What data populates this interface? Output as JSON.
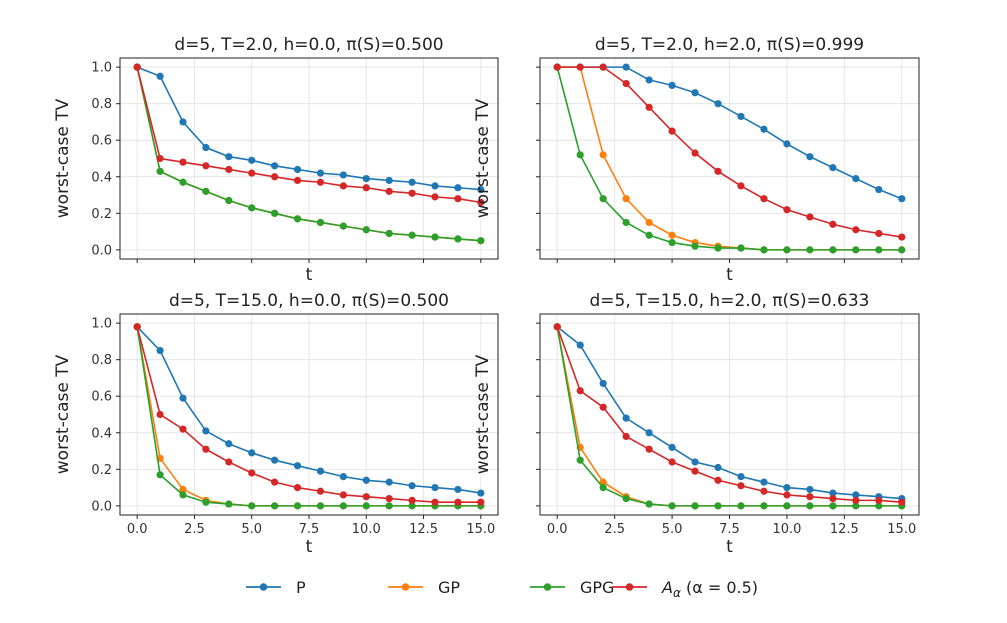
{
  "legend": {
    "items": [
      {
        "label": "P",
        "color": "#1f77b4"
      },
      {
        "label": "GP",
        "color": "#ff7f0e"
      },
      {
        "label": "GPG",
        "color": "#2ca02c"
      },
      {
        "label": "A",
        "sub": "α",
        "suffix": " (α = 0.5)",
        "color": "#d62728"
      }
    ]
  },
  "chart_data": [
    {
      "type": "line",
      "title": "d=5, T=2.0, h=0.0, π(S)=0.500",
      "xlabel": "t",
      "ylabel": "worst-case TV",
      "xlim": [
        0,
        15
      ],
      "ylim": [
        0,
        1.0
      ],
      "x_ticklabels_shown": false,
      "y_ticklabels_shown": true,
      "x": [
        0,
        1,
        2,
        3,
        4,
        5,
        6,
        7,
        8,
        9,
        10,
        11,
        12,
        13,
        14,
        15
      ],
      "series": [
        {
          "name": "P",
          "values": [
            1.0,
            0.95,
            0.7,
            0.56,
            0.51,
            0.49,
            0.46,
            0.44,
            0.42,
            0.41,
            0.39,
            0.38,
            0.37,
            0.35,
            0.34,
            0.33
          ]
        },
        {
          "name": "GP",
          "values": [
            1.0,
            0.43,
            0.37,
            0.32,
            0.27,
            0.23,
            0.2,
            0.17,
            0.15,
            0.13,
            0.11,
            0.09,
            0.08,
            0.07,
            0.06,
            0.05
          ]
        },
        {
          "name": "GPG",
          "values": [
            1.0,
            0.43,
            0.37,
            0.32,
            0.27,
            0.23,
            0.2,
            0.17,
            0.15,
            0.13,
            0.11,
            0.09,
            0.08,
            0.07,
            0.06,
            0.05
          ]
        },
        {
          "name": "A_α (α = 0.5)",
          "values": [
            1.0,
            0.5,
            0.48,
            0.46,
            0.44,
            0.42,
            0.4,
            0.38,
            0.37,
            0.35,
            0.34,
            0.32,
            0.31,
            0.29,
            0.28,
            0.26
          ]
        }
      ]
    },
    {
      "type": "line",
      "title": "d=5, T=2.0, h=2.0, π(S)=0.999",
      "xlabel": "t",
      "ylabel": "worst-case TV",
      "xlim": [
        0,
        15
      ],
      "ylim": [
        0,
        1.0
      ],
      "x_ticklabels_shown": false,
      "y_ticklabels_shown": false,
      "x": [
        0,
        1,
        2,
        3,
        4,
        5,
        6,
        7,
        8,
        9,
        10,
        11,
        12,
        13,
        14,
        15
      ],
      "series": [
        {
          "name": "P",
          "values": [
            1.0,
            1.0,
            1.0,
            1.0,
            0.93,
            0.9,
            0.86,
            0.8,
            0.73,
            0.66,
            0.58,
            0.51,
            0.45,
            0.39,
            0.33,
            0.28
          ]
        },
        {
          "name": "GP",
          "values": [
            1.0,
            1.0,
            0.52,
            0.28,
            0.15,
            0.08,
            0.04,
            0.02,
            0.01,
            0.0,
            0.0,
            0.0,
            0.0,
            0.0,
            0.0,
            0.0
          ]
        },
        {
          "name": "GPG",
          "values": [
            1.0,
            0.52,
            0.28,
            0.15,
            0.08,
            0.04,
            0.02,
            0.01,
            0.01,
            0.0,
            0.0,
            0.0,
            0.0,
            0.0,
            0.0,
            0.0
          ]
        },
        {
          "name": "A_α (α = 0.5)",
          "values": [
            1.0,
            1.0,
            1.0,
            0.91,
            0.78,
            0.65,
            0.53,
            0.43,
            0.35,
            0.28,
            0.22,
            0.18,
            0.14,
            0.11,
            0.09,
            0.07
          ]
        }
      ]
    },
    {
      "type": "line",
      "title": "d=5, T=15.0, h=0.0, π(S)=0.500",
      "xlabel": "t",
      "ylabel": "worst-case TV",
      "xlim": [
        0,
        15
      ],
      "ylim": [
        0,
        1.0
      ],
      "x_ticklabels_shown": true,
      "y_ticklabels_shown": true,
      "x": [
        0,
        1,
        2,
        3,
        4,
        5,
        6,
        7,
        8,
        9,
        10,
        11,
        12,
        13,
        14,
        15
      ],
      "xticks": [
        "0.0",
        "2.5",
        "5.0",
        "7.5",
        "10.0",
        "12.5",
        "15.0"
      ],
      "series": [
        {
          "name": "P",
          "values": [
            0.98,
            0.85,
            0.59,
            0.41,
            0.34,
            0.29,
            0.25,
            0.22,
            0.19,
            0.16,
            0.14,
            0.13,
            0.11,
            0.1,
            0.09,
            0.07
          ]
        },
        {
          "name": "GP",
          "values": [
            0.98,
            0.26,
            0.09,
            0.03,
            0.01,
            0.0,
            0.0,
            0.0,
            0.0,
            0.0,
            0.0,
            0.0,
            0.0,
            0.0,
            0.0,
            0.0
          ]
        },
        {
          "name": "GPG",
          "values": [
            0.98,
            0.17,
            0.06,
            0.02,
            0.01,
            0.0,
            0.0,
            0.0,
            0.0,
            0.0,
            0.0,
            0.0,
            0.0,
            0.0,
            0.0,
            0.0
          ]
        },
        {
          "name": "A_α (α = 0.5)",
          "values": [
            0.98,
            0.5,
            0.42,
            0.31,
            0.24,
            0.18,
            0.13,
            0.1,
            0.08,
            0.06,
            0.05,
            0.04,
            0.03,
            0.02,
            0.02,
            0.02
          ]
        }
      ]
    },
    {
      "type": "line",
      "title": "d=5, T=15.0, h=2.0, π(S)=0.633",
      "xlabel": "t",
      "ylabel": "worst-case TV",
      "xlim": [
        0,
        15
      ],
      "ylim": [
        0,
        1.0
      ],
      "x_ticklabels_shown": true,
      "y_ticklabels_shown": false,
      "x": [
        0,
        1,
        2,
        3,
        4,
        5,
        6,
        7,
        8,
        9,
        10,
        11,
        12,
        13,
        14,
        15
      ],
      "xticks": [
        "0.0",
        "2.5",
        "5.0",
        "7.5",
        "10.0",
        "12.5",
        "15.0"
      ],
      "series": [
        {
          "name": "P",
          "values": [
            0.98,
            0.88,
            0.67,
            0.48,
            0.4,
            0.32,
            0.24,
            0.21,
            0.16,
            0.13,
            0.1,
            0.09,
            0.07,
            0.06,
            0.05,
            0.04
          ]
        },
        {
          "name": "GP",
          "values": [
            0.98,
            0.32,
            0.13,
            0.05,
            0.01,
            0.0,
            0.0,
            0.0,
            0.0,
            0.0,
            0.0,
            0.0,
            0.0,
            0.0,
            0.0,
            0.0
          ]
        },
        {
          "name": "GPG",
          "values": [
            0.98,
            0.25,
            0.1,
            0.04,
            0.01,
            0.0,
            0.0,
            0.0,
            0.0,
            0.0,
            0.0,
            0.0,
            0.0,
            0.0,
            0.0,
            0.0
          ]
        },
        {
          "name": "A_α (α = 0.5)",
          "values": [
            0.98,
            0.63,
            0.54,
            0.38,
            0.31,
            0.24,
            0.19,
            0.14,
            0.11,
            0.08,
            0.06,
            0.05,
            0.04,
            0.03,
            0.03,
            0.02
          ]
        }
      ]
    }
  ]
}
